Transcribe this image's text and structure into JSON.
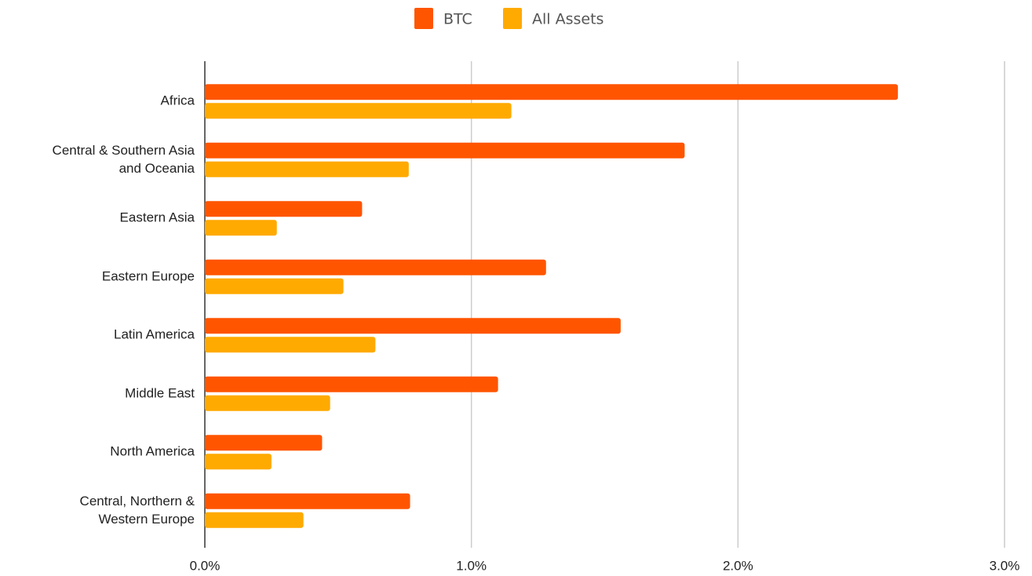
{
  "chart_data": {
    "type": "hbar",
    "categories": [
      "Africa",
      "Central & Southern Asia\nand Oceania",
      "Eastern Asia",
      "Eastern Europe",
      "Latin America",
      "Middle East",
      "North America",
      "Central, Northern &\nWestern Europe"
    ],
    "series": [
      {
        "name": "BTC",
        "color": "#ff5500",
        "values": [
          2.6,
          1.8,
          0.59,
          1.28,
          1.56,
          1.1,
          0.44,
          0.77
        ]
      },
      {
        "name": "All Assets",
        "color": "#ffaa00",
        "values": [
          1.15,
          0.765,
          0.27,
          0.52,
          0.64,
          0.47,
          0.25,
          0.37
        ]
      }
    ],
    "xlim": [
      0,
      3
    ],
    "xticks": [
      {
        "value": 0,
        "label": "0.0%"
      },
      {
        "value": 1,
        "label": "1.0%"
      },
      {
        "value": 2,
        "label": "2.0%"
      },
      {
        "value": 3,
        "label": "3.0%"
      }
    ],
    "grid": true,
    "legend": "top"
  }
}
